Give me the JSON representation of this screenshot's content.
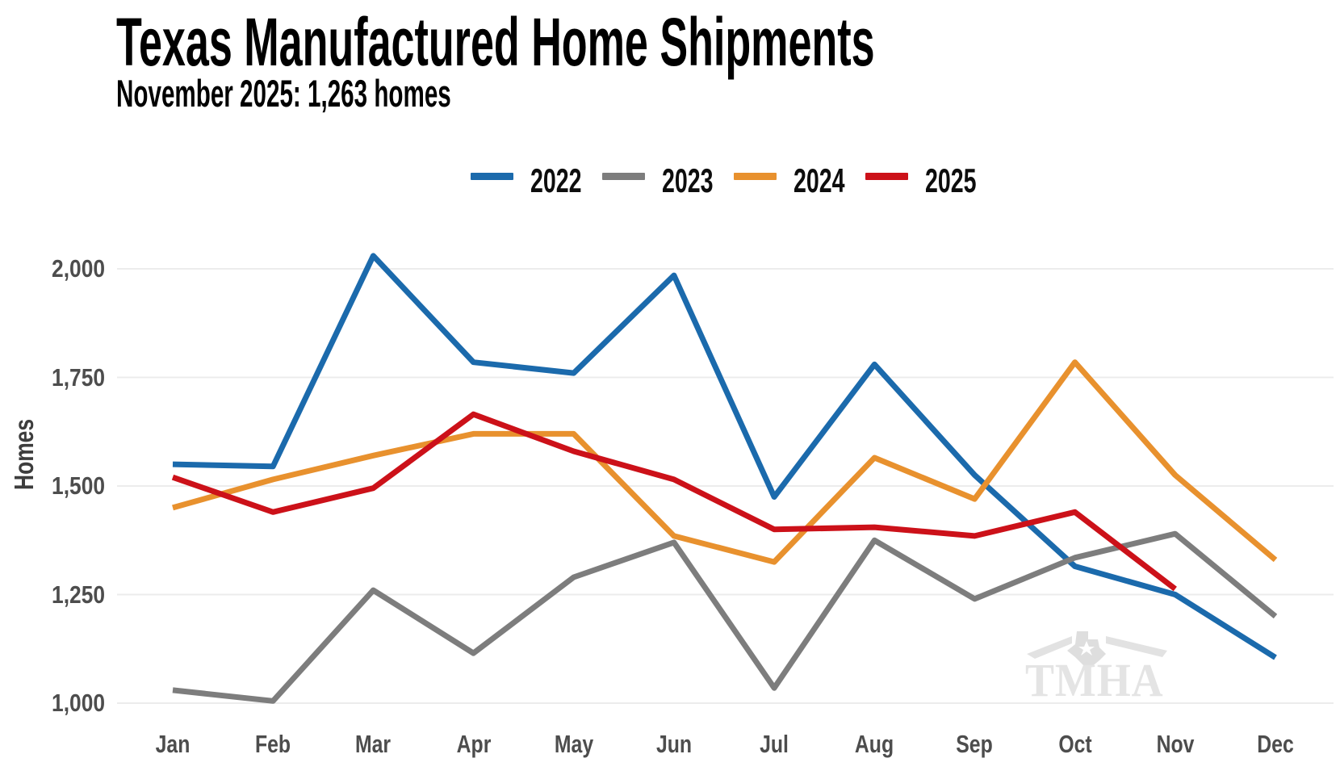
{
  "header": {
    "title": "Texas Manufactured Home Shipments",
    "subtitle": "November 2025: 1,263 homes"
  },
  "y_axis": {
    "label": "Homes",
    "ticks": [
      {
        "label": "2,000",
        "value": 2000
      },
      {
        "label": "1,750",
        "value": 1750
      },
      {
        "label": "1,500",
        "value": 1500
      },
      {
        "label": "1,250",
        "value": 1250
      },
      {
        "label": "1,000",
        "value": 1000
      }
    ]
  },
  "x_axis": {
    "months": [
      "Jan",
      "Feb",
      "Mar",
      "Apr",
      "May",
      "Jun",
      "Jul",
      "Aug",
      "Sep",
      "Oct",
      "Nov",
      "Dec"
    ]
  },
  "watermark": {
    "text": "TMHA"
  },
  "chart_data": {
    "type": "line",
    "title": "Texas Manufactured Home Shipments",
    "subtitle": "November 2025: 1,263 homes",
    "xlabel": "",
    "ylabel": "Homes",
    "ylim": [
      1000,
      2050
    ],
    "grid": "horizontal-only",
    "legend_position": "top-center",
    "categories": [
      "Jan",
      "Feb",
      "Mar",
      "Apr",
      "May",
      "Jun",
      "Jul",
      "Aug",
      "Sep",
      "Oct",
      "Nov",
      "Dec"
    ],
    "series": [
      {
        "name": "2022",
        "color": "#1b6aac",
        "values": [
          1550,
          1545,
          2030,
          1785,
          1760,
          1985,
          1475,
          1780,
          1525,
          1315,
          1250,
          1105
        ]
      },
      {
        "name": "2023",
        "color": "#7d7d7d",
        "values": [
          1030,
          1005,
          1260,
          1115,
          1290,
          1370,
          1035,
          1375,
          1240,
          1335,
          1390,
          1200
        ]
      },
      {
        "name": "2024",
        "color": "#e8912e",
        "values": [
          1450,
          1515,
          1570,
          1620,
          1620,
          1385,
          1325,
          1565,
          1470,
          1785,
          1525,
          1330
        ]
      },
      {
        "name": "2025",
        "color": "#cc1119",
        "values": [
          1520,
          1440,
          1495,
          1665,
          1580,
          1515,
          1400,
          1405,
          1385,
          1440,
          1263,
          null
        ]
      }
    ]
  }
}
